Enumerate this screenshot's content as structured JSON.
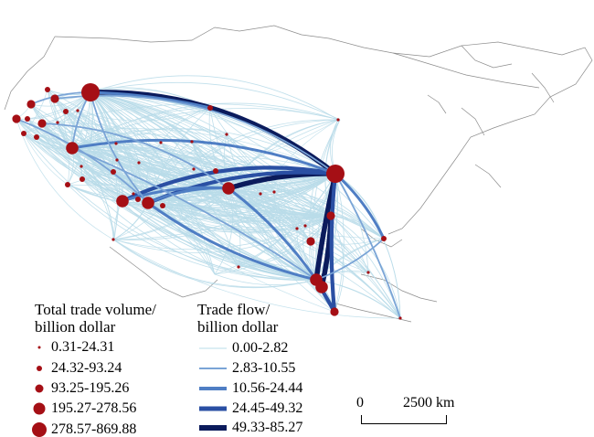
{
  "legend_nodes": {
    "title_line1": "Total trade volume/",
    "title_line2": "billion dollar",
    "classes": [
      {
        "label": "0.31-24.31"
      },
      {
        "label": "24.32-93.24"
      },
      {
        "label": "93.25-195.26"
      },
      {
        "label": "195.27-278.56"
      },
      {
        "label": "278.57-869.88"
      }
    ]
  },
  "legend_flows": {
    "title_line1": "Trade flow/",
    "title_line2": "billion dollar",
    "classes": [
      {
        "label": "0.00-2.82",
        "color": "#b9dce9"
      },
      {
        "label": "2.83-10.55",
        "color": "#7aa4d6"
      },
      {
        "label": "10.56-24.44",
        "color": "#4f7ec4"
      },
      {
        "label": "24.45-49.32",
        "color": "#2a4fa3"
      },
      {
        "label": "49.33-85.27",
        "color": "#0b1b5c"
      }
    ]
  },
  "scale_bar": {
    "start_label": "0",
    "end_label": "2500 km"
  },
  "colors": {
    "node": "#a50f15",
    "land_outline": "#8c8c8c"
  }
}
